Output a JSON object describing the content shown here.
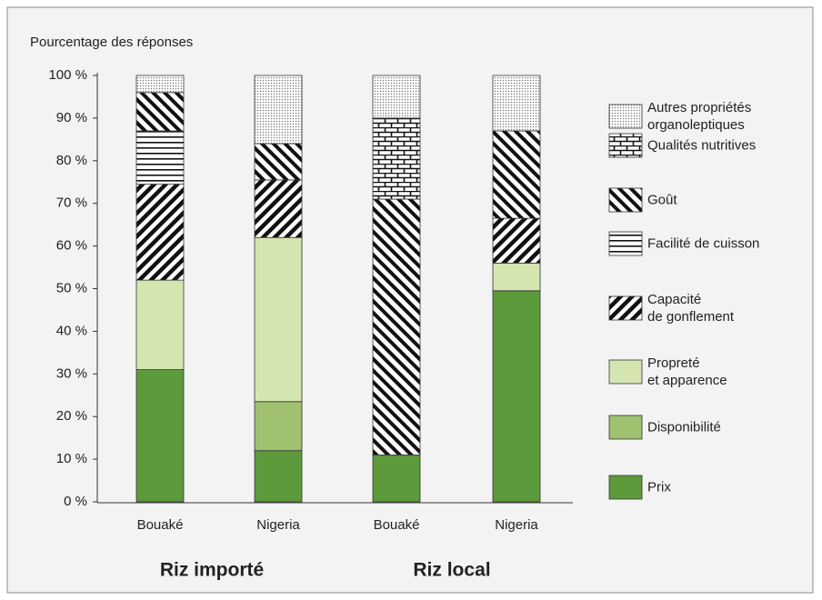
{
  "chart_data": {
    "type": "stacked_bar",
    "y_label": "Pourcentage des réponses",
    "categories": [
      "Bouaké",
      "Nigeria",
      "Bouaké",
      "Nigeria"
    ],
    "groups": [
      "Riz importé",
      "Riz local"
    ],
    "ylim": [
      0,
      100
    ],
    "yticks": [
      {
        "value": 0,
        "label": "0 %"
      },
      {
        "value": 10,
        "label": "10 %"
      },
      {
        "value": 20,
        "label": "20 %"
      },
      {
        "value": 30,
        "label": "30 %"
      },
      {
        "value": 40,
        "label": "40 %"
      },
      {
        "value": 50,
        "label": "50 %"
      },
      {
        "value": 60,
        "label": "60 %"
      },
      {
        "value": 70,
        "label": "70 %"
      },
      {
        "value": 80,
        "label": "80 %"
      },
      {
        "value": 90,
        "label": "90 %"
      },
      {
        "value": 100,
        "label": "100 %"
      }
    ],
    "series": [
      {
        "name": "Prix",
        "color": "#5c9a3c",
        "pattern": "solid",
        "values": [
          31,
          12,
          11,
          49.5
        ]
      },
      {
        "name": "Disponibilité",
        "color": "#9fc170",
        "pattern": "solid",
        "values": [
          0,
          11.5,
          0,
          0
        ]
      },
      {
        "name": "Propreté\net apparence",
        "color": "#d5e5b0",
        "pattern": "solid",
        "values": [
          21,
          38.5,
          0,
          6.5
        ]
      },
      {
        "name": "Capacité\nde gonflement",
        "color": "#111111",
        "pattern": "diag-up",
        "values": [
          22.5,
          13.5,
          0,
          10.5
        ]
      },
      {
        "name": "Facilité de cuisson",
        "color": "#111111",
        "pattern": "horizontal",
        "values": [
          12.5,
          0,
          0,
          0
        ]
      },
      {
        "name": "Goût",
        "color": "#111111",
        "pattern": "diag-down",
        "values": [
          9,
          8.5,
          60,
          20.5
        ]
      },
      {
        "name": "Qualités nutritives",
        "color": "#111111",
        "pattern": "bricks",
        "values": [
          0,
          0,
          19,
          0
        ]
      },
      {
        "name": "Autres propriétés\norganoleptiques",
        "color": "#777777",
        "pattern": "dots",
        "values": [
          4,
          16,
          10,
          13
        ]
      }
    ]
  }
}
